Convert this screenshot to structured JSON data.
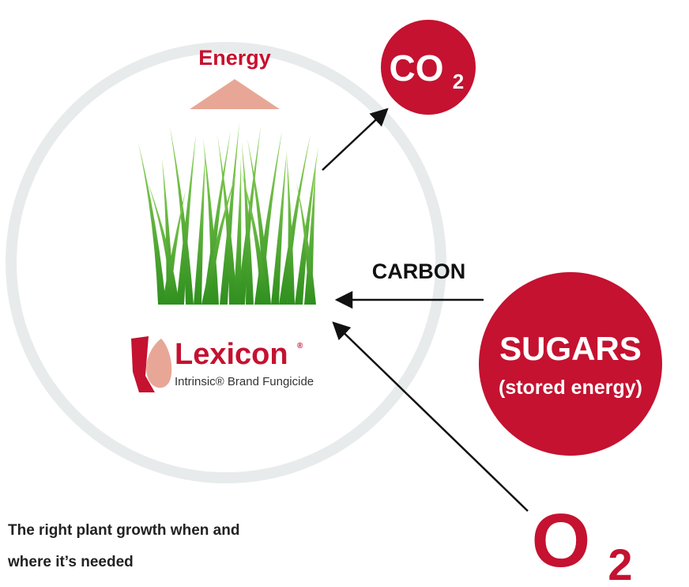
{
  "energy_label": "Energy",
  "co2": {
    "main": "CO",
    "sub": "2"
  },
  "carbon_label": "CARBON",
  "sugars": {
    "title": "SUGARS",
    "subtitle": "(stored energy)"
  },
  "o2": {
    "main": "O",
    "sub": "2"
  },
  "logo": {
    "name": "Lexicon",
    "mark": "®",
    "tagline": "Intrinsic® Brand Fungicide"
  },
  "caption": [
    "The right plant growth when and",
    "where it’s needed"
  ]
}
